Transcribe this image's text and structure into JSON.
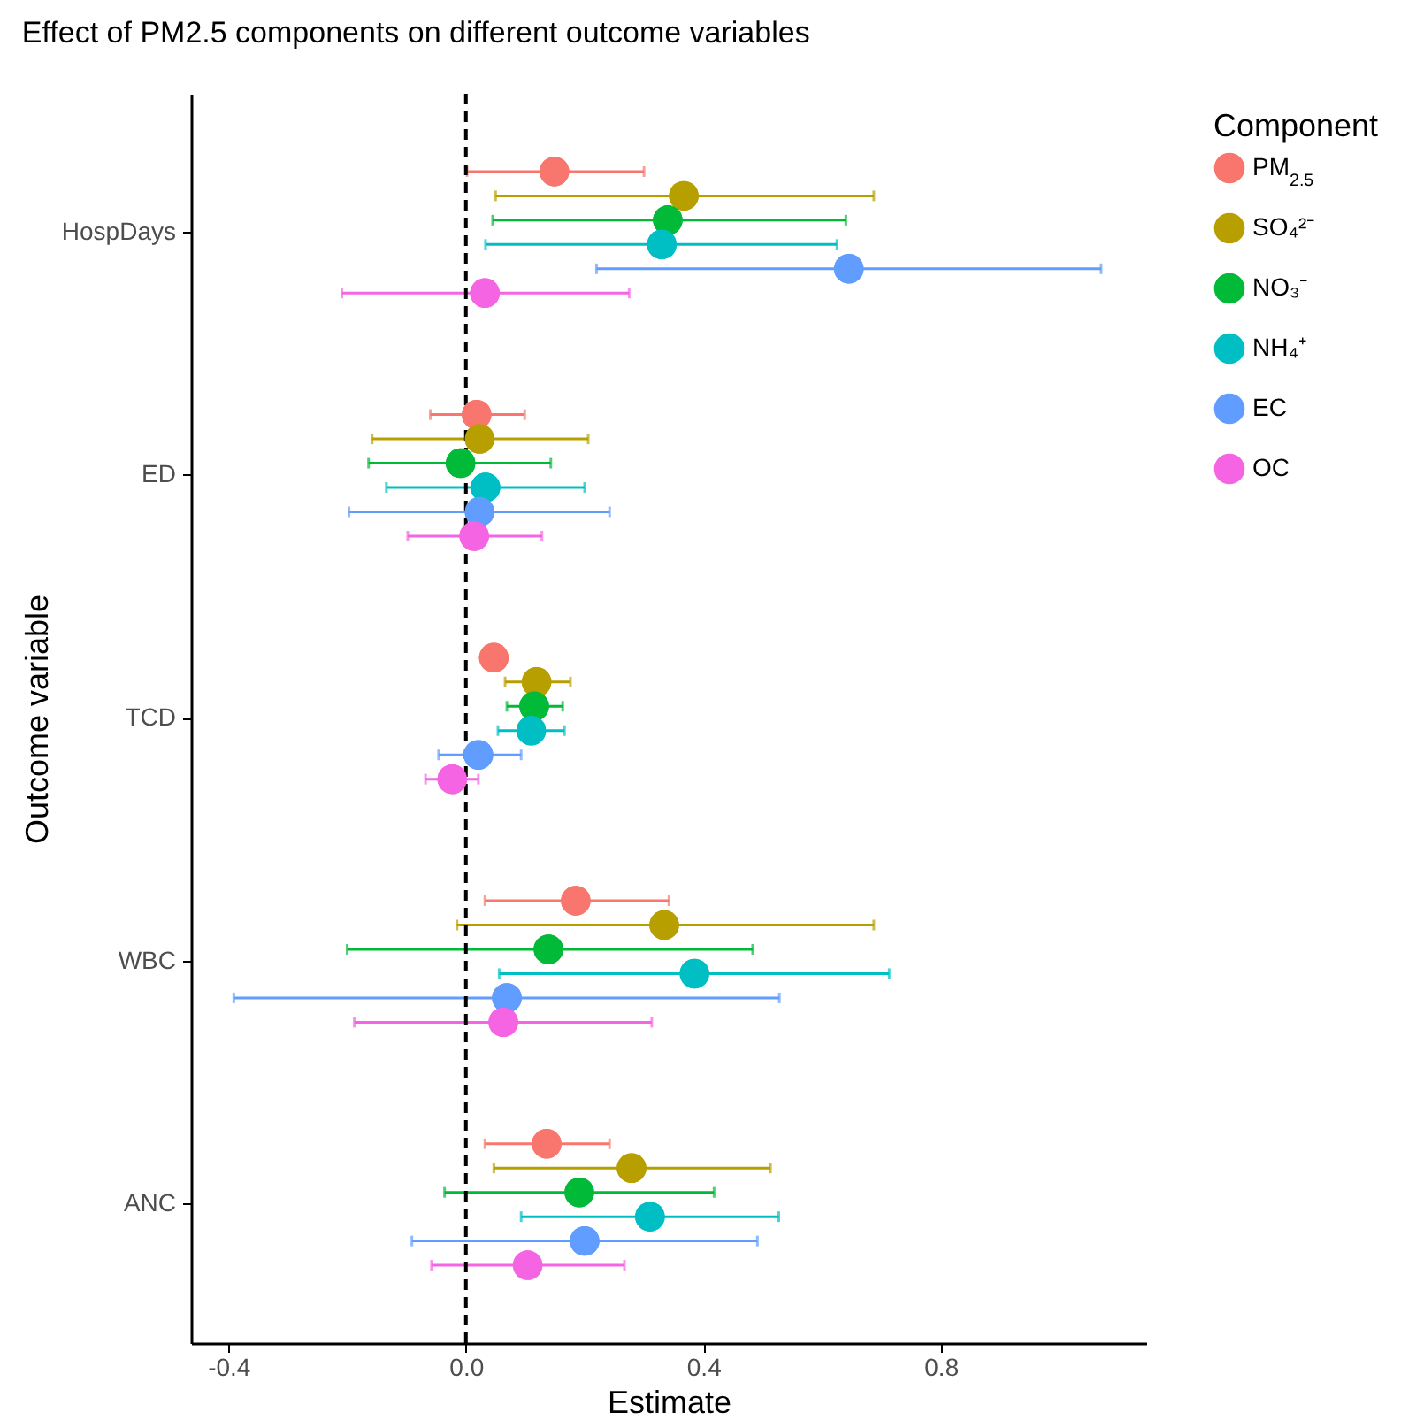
{
  "chart_data": {
    "type": "scatter",
    "orientation": "horizontal",
    "title": "Effect of PM2.5 components on different outcome variables",
    "xlabel": "Estimate",
    "ylabel": "Outcome variable",
    "legend_title": "Component",
    "legend": "right",
    "marker": "circle",
    "categories": [
      "HospDays",
      "ED",
      "TCD",
      "WBC",
      "ANC"
    ],
    "xlim": [
      -0.463,
      1.146
    ],
    "xticks": [
      -0.4,
      {
        "value": 0,
        "label": "0.0"
      },
      0.4,
      0.8
    ],
    "ref_lines": [
      {
        "axis": "x",
        "value": 0,
        "color": "#000000",
        "line_style": "dashed"
      }
    ],
    "series": [
      {
        "name": "PM$_{2.5}$",
        "color": "#f8766d",
        "values": [
          0.149,
          0.018,
          0.047,
          0.185,
          0.136
        ],
        "errors": [
          [
            0.002,
            0.3
          ],
          [
            -0.06,
            0.099
          ],
          null,
          [
            0.032,
            0.342
          ],
          [
            0.032,
            0.242
          ]
        ]
      },
      {
        "name": "SO₄²⁻",
        "color": "#b79f00",
        "values": [
          0.367,
          0.023,
          0.119,
          0.334,
          0.279
        ],
        "errors": [
          [
            0.05,
            0.687
          ],
          [
            -0.158,
            0.206
          ],
          [
            0.066,
            0.176
          ],
          [
            -0.015,
            0.687
          ],
          [
            0.047,
            0.513
          ]
        ]
      },
      {
        "name": "NO₃⁻",
        "color": "#00ba38",
        "values": [
          0.34,
          -0.009,
          0.115,
          0.139,
          0.191
        ],
        "errors": [
          [
            0.045,
            0.64
          ],
          [
            -0.164,
            0.143
          ],
          [
            0.069,
            0.163
          ],
          [
            -0.2,
            0.483
          ],
          [
            -0.036,
            0.418
          ]
        ]
      },
      {
        "name": "NH₄⁺",
        "color": "#00bfc4",
        "values": [
          0.33,
          0.033,
          0.11,
          0.385,
          0.31
        ],
        "errors": [
          [
            0.033,
            0.625
          ],
          [
            -0.134,
            0.2
          ],
          [
            0.054,
            0.166
          ],
          [
            0.056,
            0.713
          ],
          [
            0.093,
            0.527
          ]
        ]
      },
      {
        "name": "EC",
        "color": "#619cff",
        "values": [
          0.645,
          0.023,
          0.021,
          0.069,
          0.2
        ],
        "errors": [
          [
            0.22,
            1.07
          ],
          [
            -0.197,
            0.242
          ],
          [
            -0.046,
            0.093
          ],
          [
            -0.391,
            0.528
          ],
          [
            -0.091,
            0.491
          ]
        ]
      },
      {
        "name": "OC",
        "color": "#f564e3",
        "values": [
          0.032,
          0.014,
          -0.023,
          0.063,
          0.104
        ],
        "errors": [
          [
            -0.209,
            0.275
          ],
          [
            -0.098,
            0.128
          ],
          [
            -0.068,
            0.021
          ],
          [
            -0.188,
            0.313
          ],
          [
            -0.058,
            0.267
          ]
        ]
      }
    ]
  }
}
